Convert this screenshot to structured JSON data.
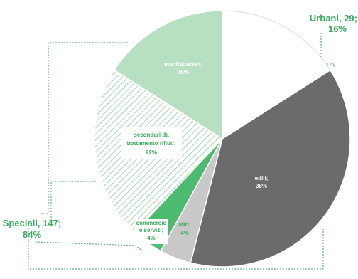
{
  "chart_data": {
    "type": "pie",
    "slices": [
      {
        "label": "Urbani",
        "value_text": "29",
        "percent_text": "16%",
        "percent": 16,
        "fill": "#ffffff",
        "pattern": "none"
      },
      {
        "label": "edili",
        "percent_text": "38%",
        "percent": 38,
        "fill": "#6b6b6b",
        "pattern": "none"
      },
      {
        "label": "altri",
        "percent_text": "4%",
        "percent": 4,
        "fill": "#c8c8c8",
        "pattern": "none"
      },
      {
        "label": "commercio e servizi",
        "percent_text": "4%",
        "percent": 4,
        "fill": "#4dbb6f",
        "pattern": "none"
      },
      {
        "label": "secondari da trattamento rifiuti",
        "percent_text": "22%",
        "percent": 22,
        "fill": "#ffffff",
        "pattern": "hatch"
      },
      {
        "label": "manifatturieri",
        "percent_text": "16%",
        "percent": 16,
        "fill": "#b6e0c1",
        "pattern": "none"
      }
    ],
    "group_labels": [
      {
        "name": "Urbani",
        "text_line1": "Urbani, 29;",
        "text_line2": "16%"
      },
      {
        "name": "Speciali",
        "text_line1": "Speciali, 147;",
        "text_line2": "84%"
      }
    ],
    "inner_labels": {
      "edili": [
        "edili;",
        "38%"
      ],
      "altri": [
        "altri;",
        "4%"
      ],
      "commercio": [
        "commercio",
        "e servizi;",
        "4%"
      ],
      "secondari": [
        "secondari da",
        "trattamento rifiuti;",
        "22%"
      ],
      "manifatturieri": [
        "manifatturieri;",
        "16%"
      ]
    },
    "colors": {
      "accent_green": "#3aaa5e",
      "dark_gray": "#6b6b6b",
      "light_gray": "#c8c8c8",
      "light_green": "#b6e0c1",
      "mid_green": "#4dbb6f",
      "hatch_green": "#8fcf9f"
    }
  }
}
